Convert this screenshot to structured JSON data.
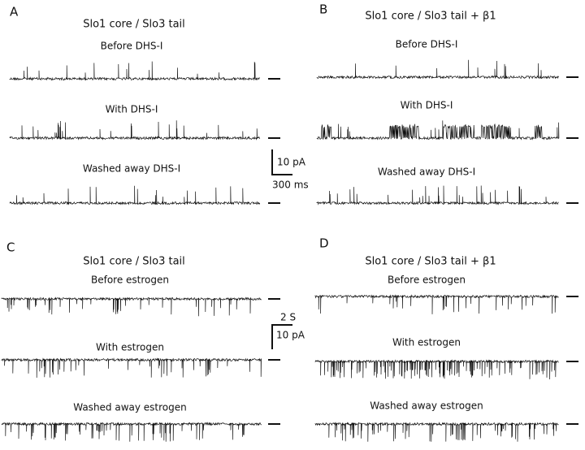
{
  "panels": [
    {
      "letter": "A",
      "title": "Slo1 core / Slo3 tail",
      "traces": [
        "Before DHS-I",
        "With DHS-I",
        "Washed away DHS-I"
      ]
    },
    {
      "letter": "B",
      "title": "Slo1 core / Slo3 tail  + β1",
      "traces": [
        "Before DHS-I",
        "With DHS-I",
        "Washed away DHS-I"
      ]
    },
    {
      "letter": "C",
      "title": "Slo1 core / Slo3 tail",
      "traces": [
        "Before estrogen",
        "With estrogen",
        "Washed away estrogen"
      ]
    },
    {
      "letter": "D",
      "title": "Slo1 core / Slo3 tail  + β1",
      "traces": [
        "Before estrogen",
        "With estrogen",
        "Washed away estrogen"
      ]
    }
  ],
  "scale_bars": [
    {
      "vertical": "10 pA",
      "horizontal": "300 ms"
    },
    {
      "horizontal": "2 S",
      "vertical": "10 pA"
    }
  ]
}
